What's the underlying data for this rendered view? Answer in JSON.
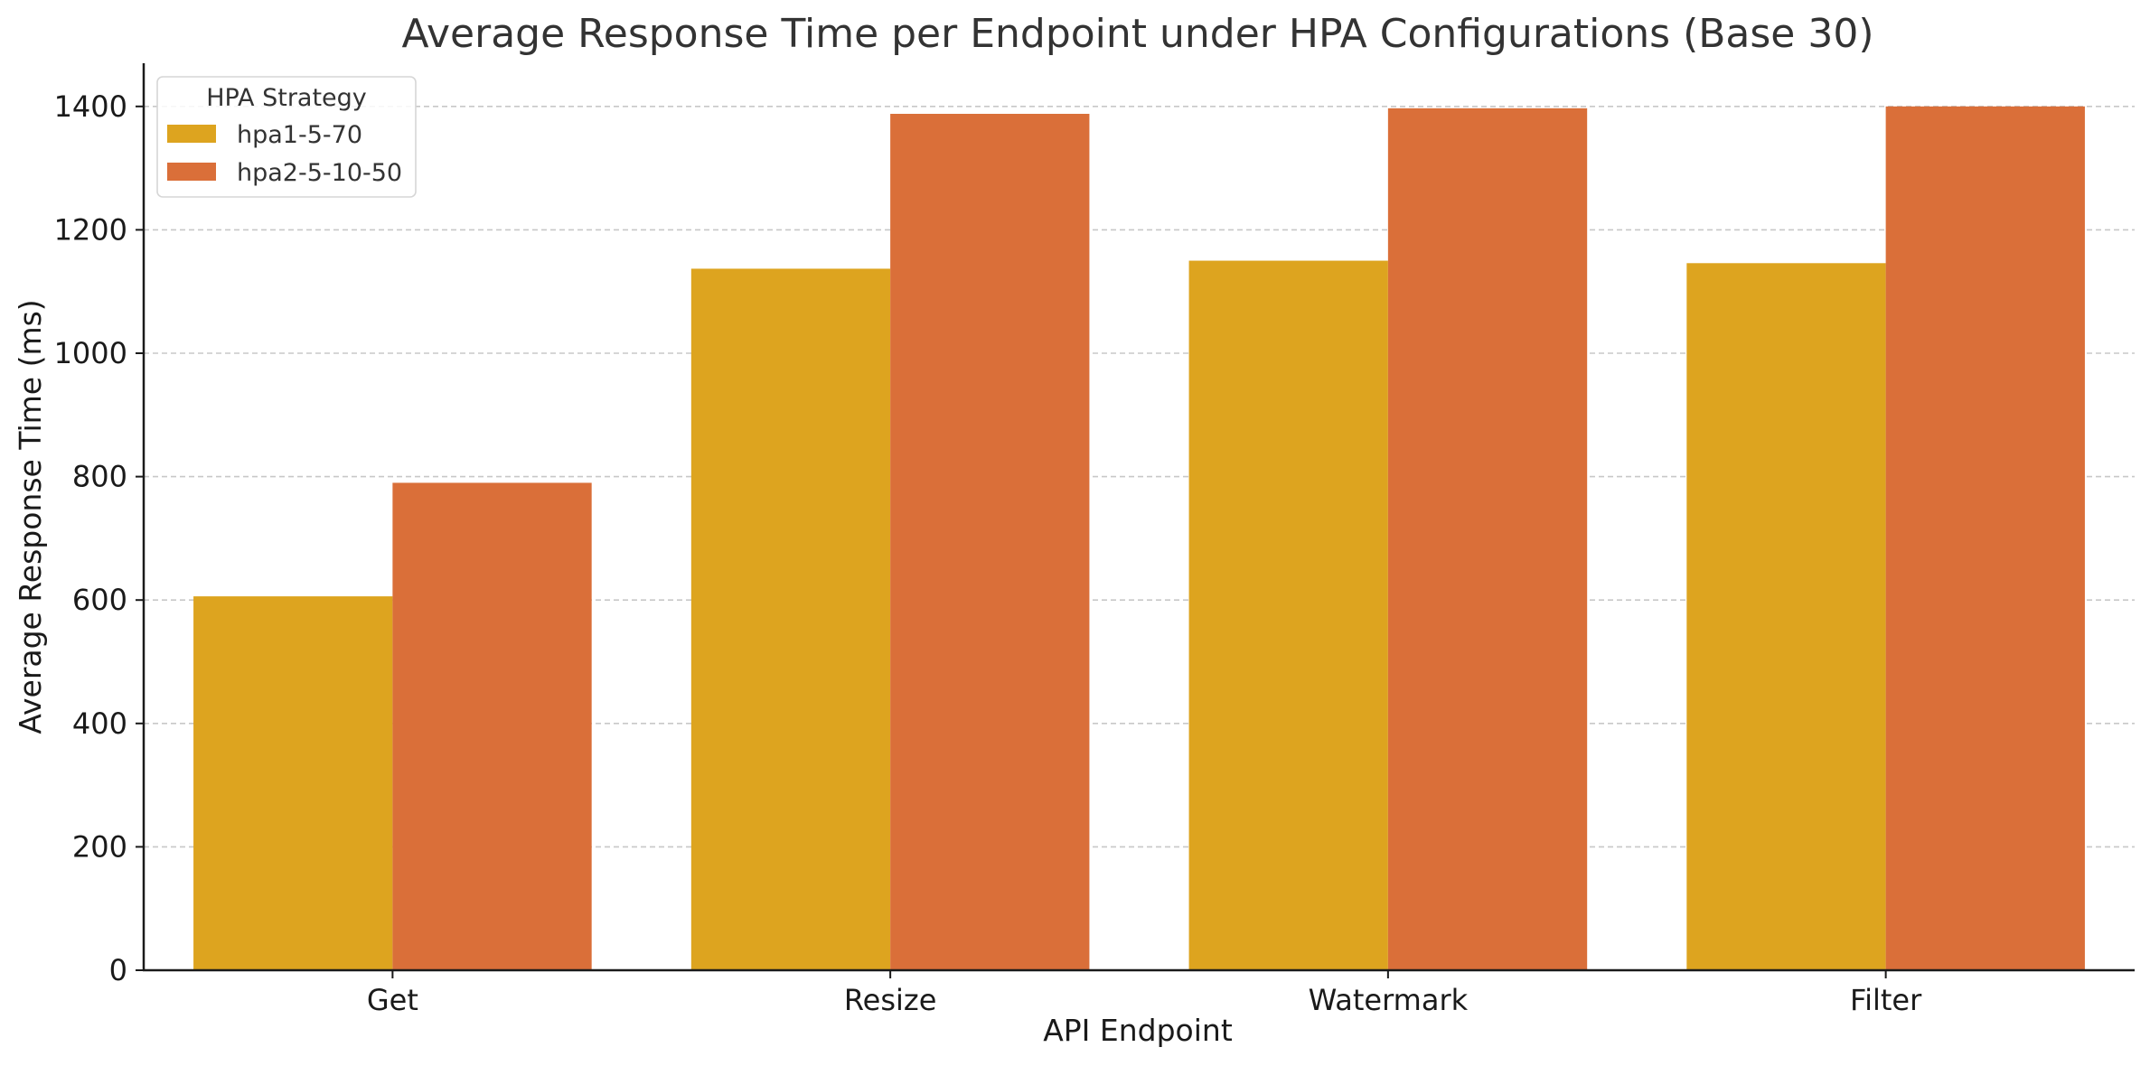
{
  "colors": {
    "hpa1-5-70": "#DDA41F",
    "hpa2-5-10-50": "#DA6F39",
    "grid": "#c8c8c8",
    "text": "#333333"
  },
  "chart_data": {
    "type": "bar",
    "title": "Average Response Time per Endpoint under HPA Configurations (Base 30)",
    "xlabel": "API Endpoint",
    "ylabel": "Average Response Time (ms)",
    "categories": [
      "Get",
      "Resize",
      "Watermark",
      "Filter"
    ],
    "series": [
      {
        "name": "hpa1-5-70",
        "values": [
          606,
          1137,
          1150,
          1146
        ]
      },
      {
        "name": "hpa2-5-10-50",
        "values": [
          790,
          1388,
          1397,
          1400
        ]
      }
    ],
    "ylim": [
      0,
      1470
    ],
    "yticks": [
      0,
      200,
      400,
      600,
      800,
      1000,
      1200,
      1400
    ],
    "grid": "y-axis dashed",
    "legend": {
      "title": "HPA Strategy",
      "placement": "top-left"
    }
  }
}
